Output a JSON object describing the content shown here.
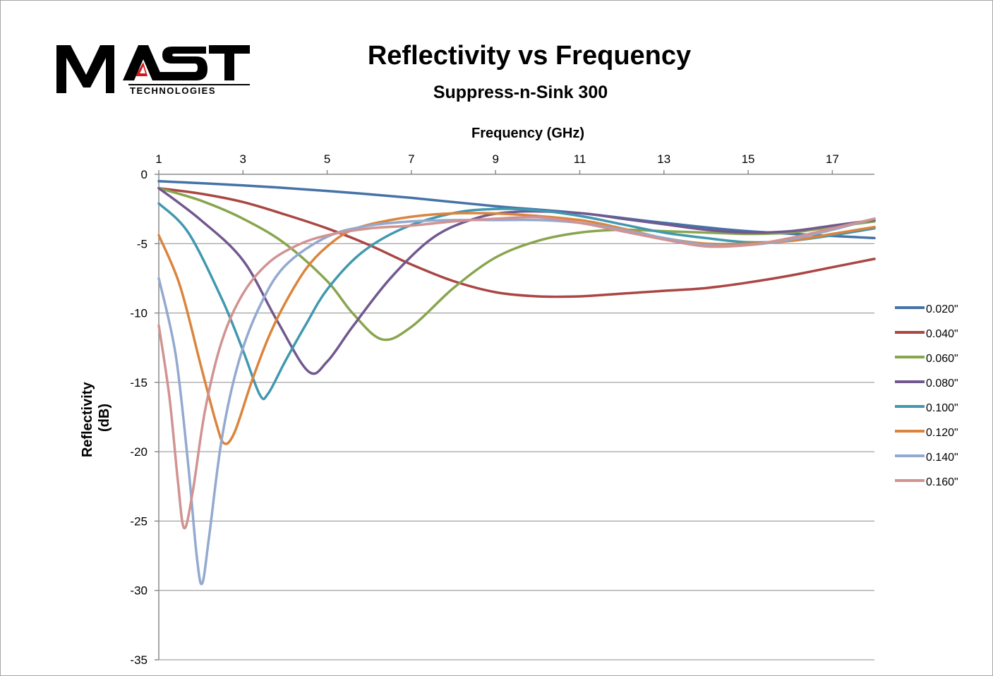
{
  "logo": {
    "main": "MAST",
    "sub": "TECHNOLOGIES"
  },
  "chart_data": {
    "type": "line",
    "title": "Reflectivity vs Frequency",
    "subtitle": "Suppress-n-Sink 300",
    "xlabel": "Frequency (GHz)",
    "ylabel_lines": [
      "Reflectivity",
      "(dB)"
    ],
    "xlim": [
      1,
      18
    ],
    "ylim": [
      -35,
      0
    ],
    "x_ticks": [
      1,
      3,
      5,
      7,
      9,
      11,
      13,
      15,
      17
    ],
    "y_ticks": [
      0,
      -5,
      -10,
      -15,
      -20,
      -25,
      -30,
      -35
    ],
    "x_axis_position": "top",
    "grid": "horizontal",
    "legend_position": "right",
    "series": [
      {
        "name": "0.020\"",
        "color": "#4572a7",
        "points": [
          [
            1,
            -0.5
          ],
          [
            3,
            -0.8
          ],
          [
            5,
            -1.2
          ],
          [
            7,
            -1.7
          ],
          [
            9,
            -2.3
          ],
          [
            11,
            -2.8
          ],
          [
            13,
            -3.5
          ],
          [
            15,
            -4.1
          ],
          [
            18,
            -4.6
          ]
        ]
      },
      {
        "name": "0.040\"",
        "color": "#aa4643",
        "points": [
          [
            1,
            -1.0
          ],
          [
            2,
            -1.4
          ],
          [
            3,
            -2.0
          ],
          [
            4,
            -2.9
          ],
          [
            5,
            -3.9
          ],
          [
            6,
            -5.1
          ],
          [
            7,
            -6.5
          ],
          [
            8,
            -7.7
          ],
          [
            9,
            -8.5
          ],
          [
            10,
            -8.8
          ],
          [
            11,
            -8.8
          ],
          [
            12,
            -8.6
          ],
          [
            13,
            -8.4
          ],
          [
            14,
            -8.2
          ],
          [
            15,
            -7.8
          ],
          [
            16,
            -7.3
          ],
          [
            17,
            -6.7
          ],
          [
            18,
            -6.1
          ]
        ]
      },
      {
        "name": "0.060\"",
        "color": "#89a54e",
        "points": [
          [
            1,
            -1.0
          ],
          [
            2,
            -1.9
          ],
          [
            3,
            -3.2
          ],
          [
            4,
            -5.0
          ],
          [
            5,
            -7.7
          ],
          [
            5.6,
            -10.0
          ],
          [
            6.3,
            -11.9
          ],
          [
            7,
            -11.0
          ],
          [
            8,
            -8.2
          ],
          [
            9,
            -6.0
          ],
          [
            10,
            -4.8
          ],
          [
            11,
            -4.2
          ],
          [
            12,
            -4.0
          ],
          [
            13,
            -4.1
          ],
          [
            14,
            -4.2
          ],
          [
            15,
            -4.3
          ],
          [
            16,
            -4.2
          ],
          [
            17,
            -3.8
          ],
          [
            18,
            -3.4
          ]
        ]
      },
      {
        "name": "0.080\"",
        "color": "#71588f",
        "points": [
          [
            1,
            -1.0
          ],
          [
            2,
            -3.3
          ],
          [
            3,
            -6.2
          ],
          [
            3.8,
            -10.5
          ],
          [
            4.55,
            -14.2
          ],
          [
            5,
            -13.5
          ],
          [
            5.6,
            -11.0
          ],
          [
            6.5,
            -7.5
          ],
          [
            7.5,
            -4.6
          ],
          [
            8.5,
            -3.2
          ],
          [
            9.5,
            -2.7
          ],
          [
            11,
            -2.8
          ],
          [
            12,
            -3.2
          ],
          [
            13,
            -3.6
          ],
          [
            14,
            -4.0
          ],
          [
            15,
            -4.2
          ],
          [
            16,
            -4.1
          ],
          [
            17,
            -3.7
          ],
          [
            18,
            -3.3
          ]
        ]
      },
      {
        "name": "0.100\"",
        "color": "#4198af",
        "points": [
          [
            1,
            -2.1
          ],
          [
            1.7,
            -4.2
          ],
          [
            2.5,
            -9.0
          ],
          [
            3,
            -12.7
          ],
          [
            3.4,
            -15.9
          ],
          [
            3.6,
            -15.8
          ],
          [
            4,
            -13.5
          ],
          [
            4.5,
            -10.8
          ],
          [
            5,
            -8.3
          ],
          [
            5.8,
            -5.7
          ],
          [
            6.8,
            -3.9
          ],
          [
            8,
            -2.8
          ],
          [
            9,
            -2.5
          ],
          [
            10,
            -2.6
          ],
          [
            11,
            -3.0
          ],
          [
            12,
            -3.6
          ],
          [
            13,
            -4.2
          ],
          [
            14,
            -4.6
          ],
          [
            15,
            -4.9
          ],
          [
            16,
            -4.8
          ],
          [
            17,
            -4.4
          ],
          [
            18,
            -3.9
          ]
        ]
      },
      {
        "name": "0.120\"",
        "color": "#db843d",
        "points": [
          [
            1,
            -4.4
          ],
          [
            1.5,
            -8.0
          ],
          [
            2,
            -13.8
          ],
          [
            2.35,
            -17.8
          ],
          [
            2.55,
            -19.4
          ],
          [
            2.8,
            -18.6
          ],
          [
            3.2,
            -15.0
          ],
          [
            3.6,
            -11.8
          ],
          [
            4,
            -9.3
          ],
          [
            4.5,
            -6.8
          ],
          [
            5,
            -5.2
          ],
          [
            5.6,
            -4.0
          ],
          [
            6.5,
            -3.3
          ],
          [
            7.5,
            -2.9
          ],
          [
            8.5,
            -2.8
          ],
          [
            9.5,
            -2.9
          ],
          [
            11,
            -3.3
          ],
          [
            12,
            -3.9
          ],
          [
            13,
            -4.6
          ],
          [
            14,
            -5.0
          ],
          [
            15,
            -5.0
          ],
          [
            16,
            -4.8
          ],
          [
            17,
            -4.3
          ],
          [
            18,
            -3.8
          ]
        ]
      },
      {
        "name": "0.140\"",
        "color": "#93a9cf",
        "points": [
          [
            1,
            -7.5
          ],
          [
            1.4,
            -13.0
          ],
          [
            1.7,
            -21.0
          ],
          [
            1.9,
            -27.5
          ],
          [
            2.03,
            -29.5
          ],
          [
            2.2,
            -26.0
          ],
          [
            2.5,
            -19.0
          ],
          [
            2.9,
            -13.5
          ],
          [
            3.4,
            -9.5
          ],
          [
            4,
            -6.6
          ],
          [
            5,
            -4.5
          ],
          [
            6,
            -3.7
          ],
          [
            7,
            -3.4
          ],
          [
            8,
            -3.3
          ],
          [
            9,
            -3.3
          ],
          [
            10,
            -3.3
          ],
          [
            11,
            -3.5
          ],
          [
            12,
            -4.0
          ],
          [
            13,
            -4.6
          ],
          [
            14,
            -5.1
          ],
          [
            15,
            -5.1
          ],
          [
            16,
            -4.7
          ],
          [
            17,
            -4.0
          ],
          [
            18,
            -3.2
          ]
        ]
      },
      {
        "name": "0.160\"",
        "color": "#d19392",
        "points": [
          [
            1,
            -10.9
          ],
          [
            1.25,
            -16.0
          ],
          [
            1.45,
            -22.0
          ],
          [
            1.6,
            -25.5
          ],
          [
            1.8,
            -23.0
          ],
          [
            2.1,
            -17.0
          ],
          [
            2.5,
            -12.0
          ],
          [
            3,
            -8.6
          ],
          [
            3.6,
            -6.4
          ],
          [
            4.3,
            -5.1
          ],
          [
            5,
            -4.4
          ],
          [
            6,
            -3.9
          ],
          [
            7,
            -3.7
          ],
          [
            8,
            -3.4
          ],
          [
            9,
            -3.2
          ],
          [
            10,
            -3.1
          ],
          [
            11,
            -3.5
          ],
          [
            12,
            -4.1
          ],
          [
            13,
            -4.7
          ],
          [
            14,
            -5.2
          ],
          [
            15,
            -5.1
          ],
          [
            16,
            -4.6
          ],
          [
            17,
            -3.9
          ],
          [
            18,
            -3.2
          ]
        ]
      }
    ]
  }
}
